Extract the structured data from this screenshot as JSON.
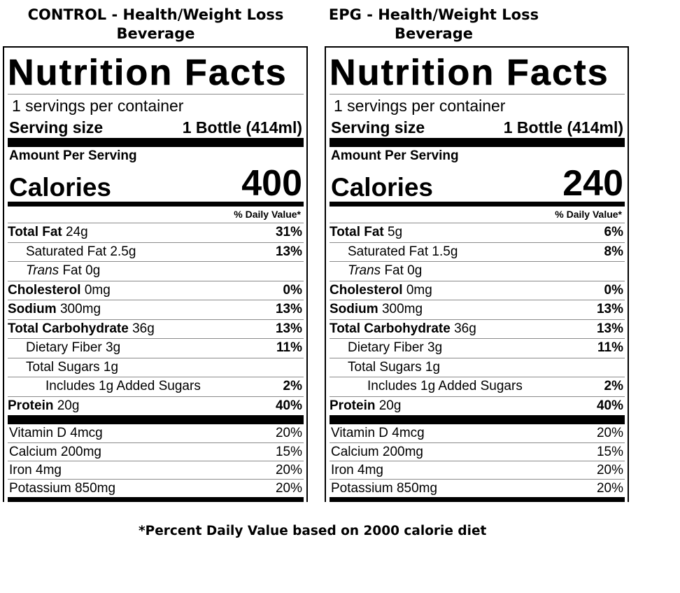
{
  "captions": {
    "left_line1": "CONTROL - Health/Weight Loss",
    "left_line2": "Beverage",
    "right_line1": "EPG - Health/Weight Loss",
    "right_line2": "Beverage"
  },
  "footnote": "*Percent Daily Value based on 2000 calorie diet",
  "labels": [
    {
      "title": "Nutrition Facts",
      "servings": "1 servings per container",
      "serving_size_label": "Serving size",
      "serving_size_value": "1 Bottle (414ml)",
      "amount_per_serving": "Amount Per Serving",
      "calories_label": "Calories",
      "calories_value": "400",
      "dv_header": "% Daily Value*",
      "nutrients": [
        {
          "name": "Total Fat",
          "amount": "24g",
          "pct": "31%"
        },
        {
          "name": "Saturated Fat",
          "amount": "2.5g",
          "pct": "13%"
        },
        {
          "name": "Trans",
          "rest": "Fat 0g",
          "pct": ""
        },
        {
          "name": "Cholesterol",
          "amount": "0mg",
          "pct": "0%"
        },
        {
          "name": "Sodium",
          "amount": "300mg",
          "pct": "13%"
        },
        {
          "name": "Total Carbohydrate",
          "amount": "36g",
          "pct": "13%"
        },
        {
          "name": "Dietary Fiber",
          "amount": "3g",
          "pct": "11%"
        },
        {
          "name": "Total Sugars",
          "amount": "1g",
          "pct": ""
        },
        {
          "name": "Includes 1g Added Sugars",
          "amount": "",
          "pct": "2%"
        },
        {
          "name": "Protein",
          "amount": "20g",
          "pct": "40%"
        }
      ],
      "vitamins": [
        {
          "name": "Vitamin D 4mcg",
          "pct": "20%"
        },
        {
          "name": "Calcium 200mg",
          "pct": "15%"
        },
        {
          "name": "Iron 4mg",
          "pct": "20%"
        },
        {
          "name": "Potassium 850mg",
          "pct": "20%"
        }
      ]
    },
    {
      "title": "Nutrition Facts",
      "servings": "1 servings per container",
      "serving_size_label": "Serving size",
      "serving_size_value": "1 Bottle (414ml)",
      "amount_per_serving": "Amount Per Serving",
      "calories_label": "Calories",
      "calories_value": "240",
      "dv_header": "% Daily Value*",
      "nutrients": [
        {
          "name": "Total Fat",
          "amount": "5g",
          "pct": "6%"
        },
        {
          "name": "Saturated Fat",
          "amount": "1.5g",
          "pct": "8%"
        },
        {
          "name": "Trans",
          "rest": "Fat 0g",
          "pct": ""
        },
        {
          "name": "Cholesterol",
          "amount": "0mg",
          "pct": "0%"
        },
        {
          "name": "Sodium",
          "amount": "300mg",
          "pct": "13%"
        },
        {
          "name": "Total Carbohydrate",
          "amount": "36g",
          "pct": "13%"
        },
        {
          "name": "Dietary Fiber",
          "amount": "3g",
          "pct": "11%"
        },
        {
          "name": "Total Sugars",
          "amount": "1g",
          "pct": ""
        },
        {
          "name": "Includes 1g Added Sugars",
          "amount": "",
          "pct": "2%"
        },
        {
          "name": "Protein",
          "amount": "20g",
          "pct": "40%"
        }
      ],
      "vitamins": [
        {
          "name": "Vitamin D 4mcg",
          "pct": "20%"
        },
        {
          "name": "Calcium 200mg",
          "pct": "15%"
        },
        {
          "name": "Iron 4mg",
          "pct": "20%"
        },
        {
          "name": "Potassium 850mg",
          "pct": "20%"
        }
      ]
    }
  ]
}
